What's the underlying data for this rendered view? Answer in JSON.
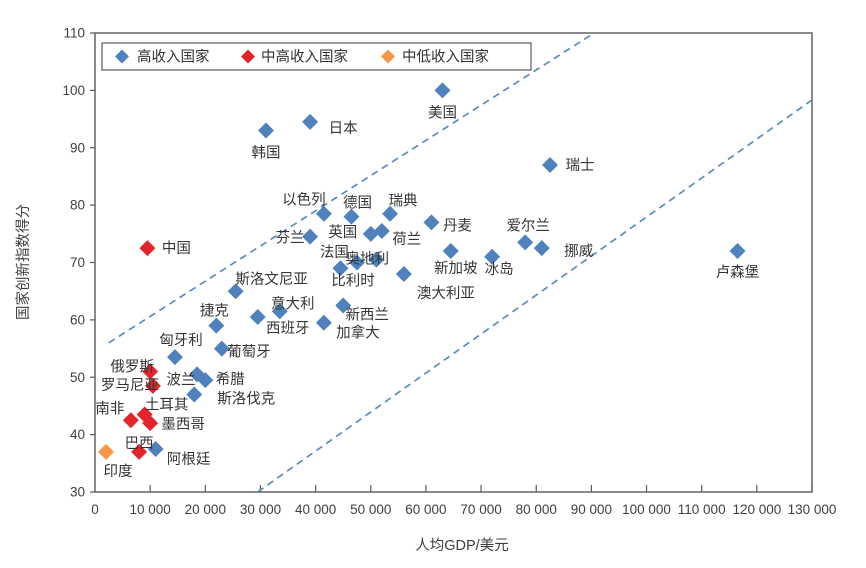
{
  "chart_data": {
    "type": "scatter",
    "title": "",
    "xlabel": "人均GDP/美元",
    "ylabel": "国家创新指数得分",
    "xlim": [
      0,
      130000
    ],
    "ylim": [
      30,
      110
    ],
    "x_tick_step": 10000,
    "y_tick_step": 10,
    "x_tick_labels": [
      "0",
      "10 000",
      "20 000",
      "30 000",
      "40 000",
      "50 000",
      "60 000",
      "70 000",
      "80 000",
      "90 000",
      "100 000",
      "110 000",
      "120 000",
      "130 000"
    ],
    "y_tick_labels": [
      "30",
      "40",
      "50",
      "60",
      "70",
      "80",
      "90",
      "100",
      "110"
    ],
    "grid": false,
    "legend_position": "top-left-inside",
    "colors": {
      "high_income": "#4f81bd",
      "upper_middle_income": "#e3242b",
      "lower_middle_income": "#f79646",
      "reference_line": "#5b8ac5",
      "axis": "#595959",
      "text": "#3f3f3f"
    },
    "legend": [
      {
        "label": "高收入国家",
        "color": "#4f81bd"
      },
      {
        "label": "中高收入国家",
        "color": "#e3242b"
      },
      {
        "label": "中低收入国家",
        "color": "#f79646"
      }
    ],
    "reference_lines": [
      {
        "x1": 2500,
        "y1": 56,
        "x2": 90500,
        "y2": 110,
        "style": "dashed"
      },
      {
        "x1": 29500,
        "y1": 30,
        "x2": 131000,
        "y2": 99,
        "style": "dashed"
      }
    ],
    "series": [
      {
        "name": "高收入国家",
        "color": "#4f81bd",
        "points": [
          {
            "label": "美国",
            "gdp": 63000,
            "score": 100,
            "dx": 0,
            "dy": 22
          },
          {
            "label": "日本",
            "gdp": 39000,
            "score": 94.5,
            "dx": 33,
            "dy": 6
          },
          {
            "label": "韩国",
            "gdp": 31000,
            "score": 93,
            "dx": 0,
            "dy": 22
          },
          {
            "label": "瑞士",
            "gdp": 82500,
            "score": 87,
            "dx": 30,
            "dy": 0
          },
          {
            "label": "以色列",
            "gdp": 41500,
            "score": 78.5,
            "dx": -20,
            "dy": -14
          },
          {
            "label": "德国",
            "gdp": 46500,
            "score": 78,
            "dx": 6,
            "dy": -14
          },
          {
            "label": "瑞典",
            "gdp": 53500,
            "score": 78.5,
            "dx": 13,
            "dy": -13
          },
          {
            "label": "丹麦",
            "gdp": 61000,
            "score": 77,
            "dx": 26,
            "dy": 3
          },
          {
            "label": "芬兰",
            "gdp": 39000,
            "score": 74.5,
            "dx": -20,
            "dy": 1
          },
          {
            "label": "英国",
            "gdp": 50000,
            "score": 75,
            "dx": -28,
            "dy": -2
          },
          {
            "label": "荷兰",
            "gdp": 52000,
            "score": 75.5,
            "dx": 25,
            "dy": 8
          },
          {
            "label": "法国",
            "gdp": 44500,
            "score": 69,
            "dx": -6,
            "dy": -16
          },
          {
            "label": "比利时",
            "gdp": 47500,
            "score": 70,
            "dx": -4,
            "dy": 18
          },
          {
            "label": "奥地利",
            "gdp": 51000,
            "score": 70.5,
            "dx": -9,
            "dy": -1
          },
          {
            "label": "新加坡",
            "gdp": 64500,
            "score": 72,
            "dx": 5,
            "dy": 17
          },
          {
            "label": "澳大利亚",
            "gdp": 56000,
            "score": 68,
            "dx": 42,
            "dy": 19
          },
          {
            "label": "冰岛",
            "gdp": 72000,
            "score": 71,
            "dx": 7,
            "dy": 12
          },
          {
            "label": "爱尔兰",
            "gdp": 78000,
            "score": 73.5,
            "dx": 3,
            "dy": -17
          },
          {
            "label": "挪威",
            "gdp": 81000,
            "score": 72.5,
            "dx": 37,
            "dy": 3
          },
          {
            "label": "卢森堡",
            "gdp": 116500,
            "score": 72,
            "dx": 0,
            "dy": 21
          },
          {
            "label": "新西兰",
            "gdp": 45000,
            "score": 62.5,
            "dx": 24,
            "dy": 9
          },
          {
            "label": "加拿大",
            "gdp": 41500,
            "score": 59.5,
            "dx": 34,
            "dy": 10
          },
          {
            "label": "意大利",
            "gdp": 33500,
            "score": 61.5,
            "dx": 13,
            "dy": -8
          },
          {
            "label": "西班牙",
            "gdp": 29500,
            "score": 60.5,
            "dx": 30,
            "dy": 11
          },
          {
            "label": "斯洛文尼亚",
            "gdp": 25500,
            "score": 65,
            "dx": 36,
            "dy": -12
          },
          {
            "label": "捷克",
            "gdp": 22000,
            "score": 59,
            "dx": -2,
            "dy": -15
          },
          {
            "label": "葡萄牙",
            "gdp": 23000,
            "score": 55,
            "dx": 27,
            "dy": 3
          },
          {
            "label": "匈牙利",
            "gdp": 14500,
            "score": 53.5,
            "dx": 6,
            "dy": -17
          },
          {
            "label": "波兰",
            "gdp": 18500,
            "score": 50.5,
            "dx": -16,
            "dy": 5
          },
          {
            "label": "希腊",
            "gdp": 20000,
            "score": 49.5,
            "dx": 25,
            "dy": -1
          },
          {
            "label": "斯洛伐克",
            "gdp": 18000,
            "score": 47,
            "dx": 52,
            "dy": 4
          },
          {
            "label": "阿根廷",
            "gdp": 11000,
            "score": 37.5,
            "dx": 33,
            "dy": 10
          }
        ]
      },
      {
        "name": "中高收入国家",
        "color": "#e3242b",
        "points": [
          {
            "label": "中国",
            "gdp": 9500,
            "score": 72.5,
            "dx": 29,
            "dy": 0
          },
          {
            "label": "俄罗斯",
            "gdp": 10000,
            "score": 51,
            "dx": -18,
            "dy": -5
          },
          {
            "label": "罗马尼亚",
            "gdp": 10500,
            "score": 48.5,
            "dx": -23,
            "dy": -1
          },
          {
            "label": "南非",
            "gdp": 6500,
            "score": 42.5,
            "dx": -21,
            "dy": -12
          },
          {
            "label": "土耳其",
            "gdp": 9000,
            "score": 43.5,
            "dx": 22,
            "dy": -10
          },
          {
            "label": "墨西哥",
            "gdp": 10000,
            "score": 42,
            "dx": 33,
            "dy": 1
          },
          {
            "label": "巴西",
            "gdp": 8000,
            "score": 37,
            "dx": 0,
            "dy": -9
          }
        ]
      },
      {
        "name": "中低收入国家",
        "color": "#f79646",
        "points": [
          {
            "label": "印度",
            "gdp": 2000,
            "score": 37,
            "dx": 12,
            "dy": 19
          }
        ]
      }
    ]
  }
}
